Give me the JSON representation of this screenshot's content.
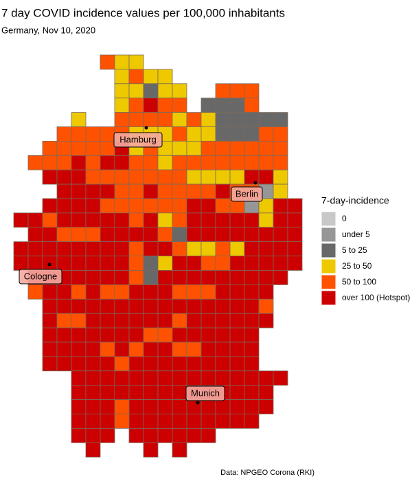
{
  "header": {
    "title": "7 day COVID incidence values per 100,000 inhabitants",
    "subtitle": "Germany, Nov 10, 2020"
  },
  "legend": {
    "title": "7-day-incidence",
    "items": [
      {
        "label": "0",
        "color": "#c8c8c8"
      },
      {
        "label": "under 5",
        "color": "#969696"
      },
      {
        "label": "5 to 25",
        "color": "#686868"
      },
      {
        "label": "25 to 50",
        "color": "#eec900"
      },
      {
        "label": "50 to 100",
        "color": "#ff5200"
      },
      {
        "label": "over 100 (Hotspot)",
        "color": "#cc0000"
      }
    ]
  },
  "cities": [
    "Hamburg",
    "Berlin",
    "Cologne",
    "Munich"
  ],
  "caption": "Data: NPGEO Corona (RKI)",
  "grid": {
    "rows": [
      [
        null,
        null,
        null,
        null,
        null,
        null,
        4,
        3,
        3,
        null,
        null,
        null,
        null,
        null,
        null,
        null,
        null,
        null,
        null,
        null
      ],
      [
        null,
        null,
        null,
        null,
        null,
        null,
        null,
        3,
        4,
        3,
        3,
        null,
        null,
        null,
        null,
        null,
        null,
        null,
        null,
        null
      ],
      [
        null,
        null,
        null,
        null,
        null,
        null,
        null,
        3,
        3,
        2,
        3,
        3,
        null,
        null,
        4,
        4,
        4,
        null,
        null,
        null
      ],
      [
        null,
        null,
        null,
        null,
        null,
        null,
        null,
        3,
        4,
        5,
        4,
        4,
        null,
        2,
        2,
        2,
        4,
        null,
        null,
        null
      ],
      [
        null,
        null,
        null,
        null,
        3,
        null,
        null,
        4,
        4,
        4,
        4,
        3,
        4,
        3,
        2,
        2,
        2,
        2,
        2,
        null
      ],
      [
        null,
        null,
        null,
        4,
        4,
        4,
        4,
        4,
        3,
        3,
        3,
        4,
        3,
        3,
        2,
        2,
        2,
        4,
        4,
        null
      ],
      [
        null,
        null,
        4,
        4,
        4,
        4,
        4,
        5,
        3,
        4,
        3,
        3,
        3,
        4,
        4,
        4,
        4,
        4,
        4,
        null
      ],
      [
        null,
        4,
        4,
        4,
        5,
        4,
        5,
        5,
        4,
        4,
        3,
        4,
        4,
        4,
        4,
        4,
        4,
        4,
        4,
        null
      ],
      [
        null,
        null,
        5,
        5,
        5,
        4,
        4,
        4,
        4,
        4,
        4,
        4,
        3,
        3,
        3,
        3,
        5,
        5,
        3,
        null
      ],
      [
        null,
        null,
        null,
        5,
        5,
        5,
        5,
        4,
        4,
        5,
        4,
        4,
        4,
        4,
        5,
        4,
        4,
        1,
        3,
        null
      ],
      [
        null,
        null,
        5,
        5,
        5,
        5,
        4,
        4,
        4,
        4,
        4,
        4,
        5,
        5,
        4,
        4,
        1,
        3,
        5,
        5
      ],
      [
        5,
        5,
        4,
        5,
        5,
        5,
        5,
        5,
        4,
        5,
        3,
        4,
        5,
        5,
        5,
        5,
        5,
        3,
        5,
        5
      ],
      [
        null,
        5,
        5,
        4,
        4,
        4,
        5,
        5,
        5,
        5,
        4,
        2,
        5,
        5,
        5,
        5,
        5,
        5,
        5,
        5
      ],
      [
        5,
        5,
        5,
        5,
        5,
        5,
        5,
        5,
        4,
        5,
        5,
        4,
        3,
        3,
        4,
        3,
        5,
        5,
        5,
        5
      ],
      [
        5,
        5,
        5,
        5,
        5,
        5,
        5,
        5,
        4,
        2,
        3,
        5,
        5,
        4,
        4,
        5,
        5,
        5,
        5,
        5
      ],
      [
        null,
        5,
        5,
        5,
        5,
        5,
        5,
        5,
        4,
        2,
        5,
        5,
        5,
        5,
        5,
        5,
        5,
        5,
        5,
        null
      ],
      [
        null,
        4,
        5,
        5,
        4,
        5,
        4,
        4,
        5,
        5,
        5,
        4,
        4,
        4,
        5,
        5,
        5,
        5,
        null,
        null
      ],
      [
        null,
        null,
        5,
        5,
        5,
        5,
        5,
        5,
        5,
        5,
        5,
        5,
        5,
        5,
        5,
        5,
        5,
        4,
        null,
        null
      ],
      [
        null,
        null,
        5,
        4,
        4,
        5,
        5,
        5,
        5,
        5,
        5,
        4,
        5,
        5,
        5,
        5,
        5,
        5,
        null,
        null
      ],
      [
        null,
        null,
        5,
        5,
        5,
        5,
        5,
        5,
        5,
        4,
        4,
        5,
        5,
        5,
        5,
        5,
        5,
        null,
        null,
        null
      ],
      [
        null,
        null,
        5,
        5,
        5,
        5,
        4,
        5,
        4,
        5,
        5,
        4,
        4,
        5,
        5,
        5,
        5,
        null,
        null,
        null
      ],
      [
        null,
        null,
        5,
        5,
        5,
        5,
        5,
        4,
        5,
        5,
        5,
        5,
        5,
        5,
        5,
        5,
        5,
        null,
        null,
        null
      ],
      [
        null,
        null,
        null,
        null,
        5,
        5,
        5,
        5,
        5,
        5,
        5,
        5,
        5,
        5,
        5,
        5,
        5,
        5,
        5,
        null
      ],
      [
        null,
        null,
        null,
        null,
        5,
        5,
        5,
        5,
        5,
        5,
        5,
        5,
        5,
        5,
        5,
        5,
        5,
        5,
        null,
        null
      ],
      [
        null,
        null,
        null,
        null,
        5,
        5,
        5,
        4,
        5,
        5,
        5,
        5,
        5,
        5,
        5,
        5,
        5,
        5,
        null,
        null
      ],
      [
        null,
        null,
        null,
        null,
        5,
        5,
        5,
        4,
        5,
        5,
        5,
        5,
        5,
        5,
        5,
        5,
        5,
        null,
        null,
        null
      ],
      [
        null,
        null,
        null,
        null,
        5,
        5,
        5,
        null,
        5,
        5,
        5,
        5,
        5,
        5,
        null,
        null,
        null,
        null,
        null,
        null
      ],
      [
        null,
        null,
        null,
        null,
        null,
        5,
        null,
        null,
        null,
        5,
        null,
        5,
        null,
        null,
        null,
        null,
        null,
        null,
        null,
        null
      ]
    ]
  }
}
